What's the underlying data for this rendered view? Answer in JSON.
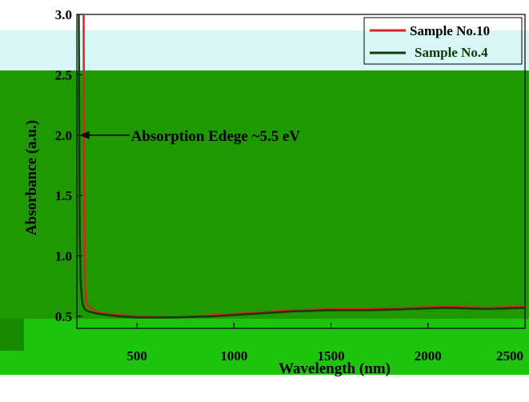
{
  "colors": {
    "background_tint": "#d9f6f6",
    "panel_green": "#1e9900",
    "panel_green_light": "#1cc40c",
    "axis": "#000000"
  },
  "chart_data": {
    "type": "line",
    "title": "",
    "xlabel": "Wavelength (nm)",
    "ylabel": "Absorbance (a.u.)",
    "xlim": [
      190,
      2500
    ],
    "ylim": [
      0.4,
      3.0
    ],
    "x_ticks": [
      {
        "value": 500,
        "label": "500"
      },
      {
        "value": 1000,
        "label": "1000"
      },
      {
        "value": 1500,
        "label": "1500"
      },
      {
        "value": 2000,
        "label": "2000"
      },
      {
        "value": 2500,
        "label": "2500"
      }
    ],
    "y_ticks": [
      {
        "value": 0.5,
        "label": "0.5"
      },
      {
        "value": 1.0,
        "label": "1.0"
      },
      {
        "value": 1.5,
        "label": "1.5"
      },
      {
        "value": 2.0,
        "label": "2.0"
      },
      {
        "value": 2.5,
        "label": "2.5"
      },
      {
        "value": 3.0,
        "label": "3.0"
      }
    ],
    "legend_position": "top-right",
    "series": [
      {
        "name": "Sample No.10",
        "color": "#e02020",
        "x": [
          225,
          226,
          228,
          230,
          232,
          235,
          240,
          250,
          270,
          300,
          400,
          500,
          700,
          900,
          1100,
          1300,
          1500,
          1700,
          1900,
          2100,
          2300,
          2500
        ],
        "y": [
          3.0,
          2.6,
          1.6,
          1.0,
          0.8,
          0.68,
          0.62,
          0.58,
          0.56,
          0.53,
          0.51,
          0.5,
          0.49,
          0.51,
          0.53,
          0.55,
          0.56,
          0.56,
          0.57,
          0.58,
          0.57,
          0.58
        ]
      },
      {
        "name": "Sample No.4",
        "color": "#0b3d0b",
        "x": [
          200,
          201,
          203,
          205,
          210,
          215,
          220,
          230,
          250,
          300,
          400,
          500,
          700,
          900,
          1100,
          1300,
          1500,
          1700,
          1900,
          2100,
          2300,
          2500
        ],
        "y": [
          3.0,
          2.6,
          1.8,
          1.2,
          0.8,
          0.66,
          0.6,
          0.56,
          0.54,
          0.52,
          0.5,
          0.49,
          0.49,
          0.5,
          0.52,
          0.54,
          0.55,
          0.55,
          0.56,
          0.57,
          0.56,
          0.57
        ]
      }
    ],
    "annotations": [
      {
        "text": "Absorption Edege ~5.5 eV",
        "x": 205,
        "y": 2.0
      }
    ]
  }
}
